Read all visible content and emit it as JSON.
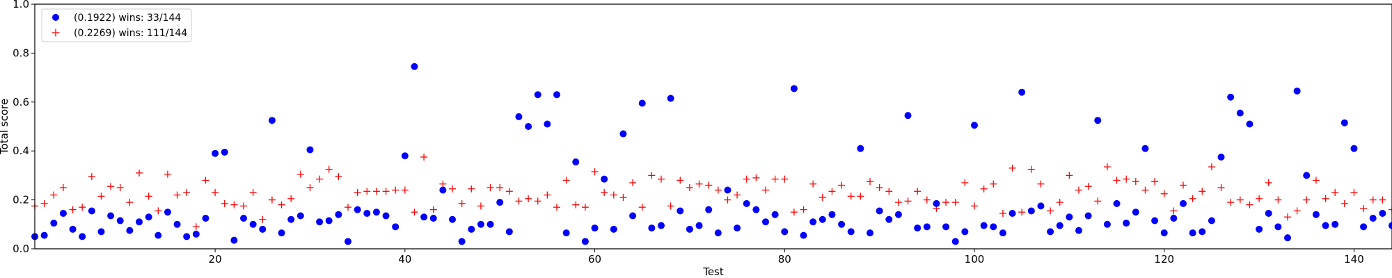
{
  "chart_data": {
    "type": "scatter",
    "xlabel": "Test",
    "ylabel": "Total score",
    "xlim": [
      1,
      144
    ],
    "ylim": [
      0.0,
      1.0
    ],
    "x_ticks": [
      20,
      40,
      60,
      80,
      100,
      120,
      140
    ],
    "x_tick_labels": [
      "20",
      "40",
      "60",
      "80",
      "100",
      "120",
      "140"
    ],
    "y_ticks": [
      0.0,
      0.2,
      0.4,
      0.6,
      0.8,
      1.0
    ],
    "y_tick_labels": [
      "0.0",
      "0.2",
      "0.4",
      "0.6",
      "0.8",
      "1.0"
    ],
    "grid": false,
    "legend_position": "top-left",
    "series": [
      {
        "name": "(0.1922) wins: 33/144",
        "color": "#0000ff",
        "marker": "circle",
        "x": [
          1,
          2,
          3,
          4,
          5,
          6,
          7,
          8,
          9,
          10,
          11,
          12,
          13,
          14,
          15,
          16,
          17,
          18,
          19,
          20,
          21,
          22,
          23,
          24,
          25,
          26,
          27,
          28,
          29,
          30,
          31,
          32,
          33,
          34,
          35,
          36,
          37,
          38,
          39,
          40,
          41,
          42,
          43,
          44,
          45,
          46,
          47,
          48,
          49,
          50,
          51,
          52,
          53,
          54,
          55,
          56,
          57,
          58,
          59,
          60,
          61,
          62,
          63,
          64,
          65,
          66,
          67,
          68,
          69,
          70,
          71,
          72,
          73,
          74,
          75,
          76,
          77,
          78,
          79,
          80,
          81,
          82,
          83,
          84,
          85,
          86,
          87,
          88,
          89,
          90,
          91,
          92,
          93,
          94,
          95,
          96,
          97,
          98,
          99,
          100,
          101,
          102,
          103,
          104,
          105,
          106,
          107,
          108,
          109,
          110,
          111,
          112,
          113,
          114,
          115,
          116,
          117,
          118,
          119,
          120,
          121,
          122,
          123,
          124,
          125,
          126,
          127,
          128,
          129,
          130,
          131,
          132,
          133,
          134,
          135,
          136,
          137,
          138,
          139,
          140,
          141,
          142,
          143,
          144
        ],
        "y": [
          0.05,
          0.055,
          0.105,
          0.145,
          0.08,
          0.05,
          0.155,
          0.07,
          0.135,
          0.115,
          0.075,
          0.11,
          0.13,
          0.055,
          0.15,
          0.1,
          0.05,
          0.06,
          0.125,
          0.39,
          0.395,
          0.035,
          0.125,
          0.1,
          0.08,
          0.525,
          0.065,
          0.12,
          0.135,
          0.405,
          0.11,
          0.115,
          0.14,
          0.03,
          0.16,
          0.145,
          0.15,
          0.135,
          0.09,
          0.38,
          0.745,
          0.13,
          0.125,
          0.24,
          0.12,
          0.03,
          0.08,
          0.1,
          0.1,
          0.19,
          0.07,
          0.54,
          0.5,
          0.63,
          0.51,
          0.63,
          0.065,
          0.355,
          0.03,
          0.085,
          0.285,
          0.08,
          0.47,
          0.135,
          0.595,
          0.085,
          0.095,
          0.615,
          0.155,
          0.08,
          0.095,
          0.16,
          0.065,
          0.24,
          0.085,
          0.185,
          0.16,
          0.11,
          0.14,
          0.07,
          0.655,
          0.055,
          0.11,
          0.12,
          0.14,
          0.1,
          0.07,
          0.41,
          0.065,
          0.155,
          0.12,
          0.14,
          0.545,
          0.085,
          0.09,
          0.185,
          0.09,
          0.03,
          0.07,
          0.505,
          0.095,
          0.09,
          0.065,
          0.145,
          0.64,
          0.155,
          0.175,
          0.07,
          0.095,
          0.13,
          0.075,
          0.135,
          0.525,
          0.1,
          0.185,
          0.105,
          0.15,
          0.41,
          0.115,
          0.065,
          0.125,
          0.185,
          0.065,
          0.07,
          0.115,
          0.375,
          0.62,
          0.555,
          0.51,
          0.08,
          0.145,
          0.09,
          0.045,
          0.645,
          0.3,
          0.14,
          0.095,
          0.1,
          0.515,
          0.41,
          0.09,
          0.125,
          0.145,
          0.095
        ]
      },
      {
        "name": "(0.2269) wins: 111/144",
        "color": "#ff0000",
        "marker": "plus",
        "x": [
          1,
          2,
          3,
          4,
          5,
          6,
          7,
          8,
          9,
          10,
          11,
          12,
          13,
          14,
          15,
          16,
          17,
          18,
          19,
          20,
          21,
          22,
          23,
          24,
          25,
          26,
          27,
          28,
          29,
          30,
          31,
          32,
          33,
          34,
          35,
          36,
          37,
          38,
          39,
          40,
          41,
          42,
          43,
          44,
          45,
          46,
          47,
          48,
          49,
          50,
          51,
          52,
          53,
          54,
          55,
          56,
          57,
          58,
          59,
          60,
          61,
          62,
          63,
          64,
          65,
          66,
          67,
          68,
          69,
          70,
          71,
          72,
          73,
          74,
          75,
          76,
          77,
          78,
          79,
          80,
          81,
          82,
          83,
          84,
          85,
          86,
          87,
          88,
          89,
          90,
          91,
          92,
          93,
          94,
          95,
          96,
          97,
          98,
          99,
          100,
          101,
          102,
          103,
          104,
          105,
          106,
          107,
          108,
          109,
          110,
          111,
          112,
          113,
          114,
          115,
          116,
          117,
          118,
          119,
          120,
          121,
          122,
          123,
          124,
          125,
          126,
          127,
          128,
          129,
          130,
          131,
          132,
          133,
          134,
          135,
          136,
          137,
          138,
          139,
          140,
          141,
          142,
          143,
          144
        ],
        "y": [
          0.175,
          0.185,
          0.22,
          0.25,
          0.16,
          0.17,
          0.295,
          0.215,
          0.255,
          0.25,
          0.19,
          0.31,
          0.215,
          0.155,
          0.305,
          0.22,
          0.23,
          0.09,
          0.28,
          0.23,
          0.185,
          0.18,
          0.175,
          0.23,
          0.12,
          0.2,
          0.18,
          0.205,
          0.305,
          0.25,
          0.285,
          0.325,
          0.295,
          0.17,
          0.23,
          0.235,
          0.235,
          0.235,
          0.24,
          0.24,
          0.15,
          0.375,
          0.16,
          0.265,
          0.245,
          0.185,
          0.245,
          0.175,
          0.25,
          0.25,
          0.235,
          0.195,
          0.205,
          0.195,
          0.22,
          0.17,
          0.28,
          0.18,
          0.17,
          0.315,
          0.23,
          0.22,
          0.21,
          0.27,
          0.17,
          0.3,
          0.285,
          0.175,
          0.28,
          0.25,
          0.265,
          0.26,
          0.24,
          0.2,
          0.22,
          0.285,
          0.29,
          0.24,
          0.285,
          0.285,
          0.15,
          0.16,
          0.265,
          0.21,
          0.235,
          0.26,
          0.215,
          0.215,
          0.275,
          0.25,
          0.235,
          0.19,
          0.195,
          0.235,
          0.2,
          0.165,
          0.19,
          0.19,
          0.27,
          0.175,
          0.245,
          0.265,
          0.145,
          0.33,
          0.15,
          0.325,
          0.265,
          0.155,
          0.19,
          0.3,
          0.24,
          0.255,
          0.195,
          0.335,
          0.28,
          0.285,
          0.275,
          0.24,
          0.275,
          0.225,
          0.155,
          0.26,
          0.205,
          0.235,
          0.335,
          0.25,
          0.19,
          0.2,
          0.18,
          0.205,
          0.27,
          0.2,
          0.13,
          0.155,
          0.2,
          0.28,
          0.205,
          0.23,
          0.185,
          0.23,
          0.165,
          0.2,
          0.2,
          0.16
        ]
      }
    ]
  }
}
